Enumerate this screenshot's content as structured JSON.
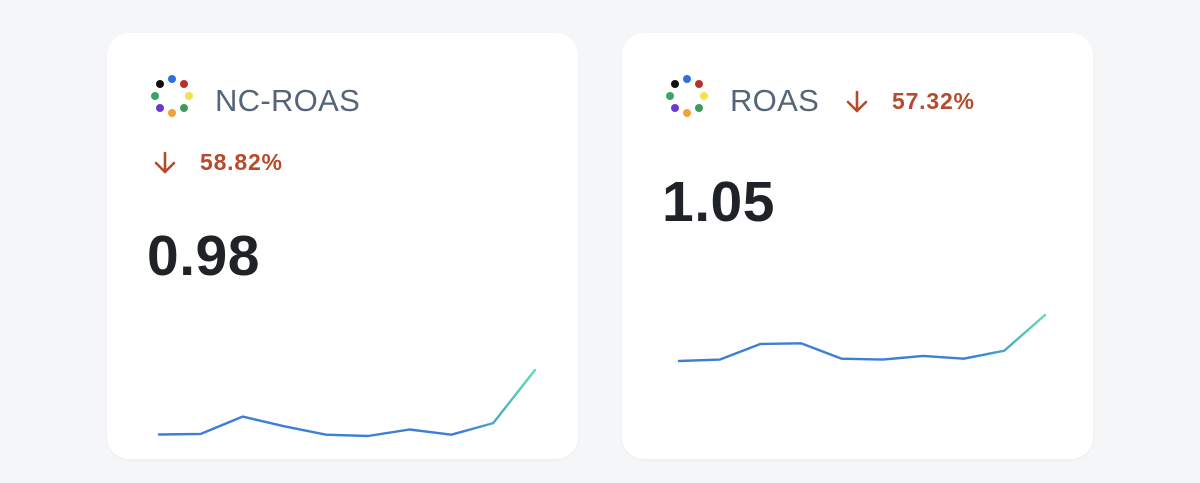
{
  "cards": [
    {
      "title": "NC-ROAS",
      "change": "58.82%",
      "direction": "down",
      "value": "0.98",
      "sparkline": [
        0.14,
        0.17,
        0.99,
        0.53,
        0.13,
        0.07,
        0.38,
        0.13,
        0.68,
        3.2
      ],
      "logo_colors": [
        "#2f6fe0",
        "#b8322d",
        "#f4e24a",
        "#3d9a5a",
        "#f0a23a",
        "#6a3ad0",
        "#3aa56a",
        "#111111"
      ]
    },
    {
      "title": "ROAS",
      "change": "57.32%",
      "direction": "down",
      "value": "1.05",
      "sparkline": [
        0.0,
        0.08,
        0.96,
        1.0,
        0.13,
        0.08,
        0.29,
        0.13,
        0.58,
        2.6
      ],
      "logo_colors": [
        "#2f6fe0",
        "#b8322d",
        "#f4e24a",
        "#3d9a5a",
        "#f0a23a",
        "#6a3ad0",
        "#3aa56a",
        "#111111"
      ]
    }
  ],
  "colors": {
    "change_down": "#b64a2c",
    "line_start": "#3c7fd6",
    "line_end": "#5ee0b0"
  }
}
